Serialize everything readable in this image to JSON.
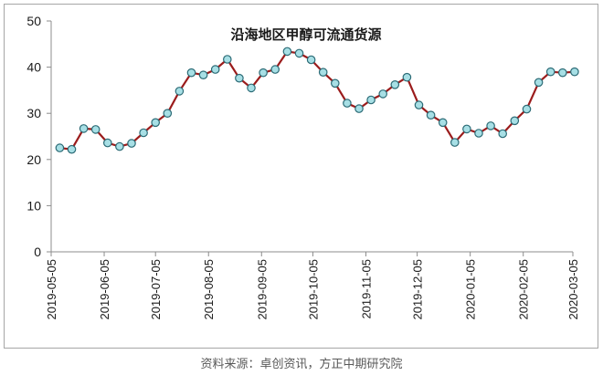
{
  "chart_data": {
    "type": "line",
    "title": "沿海地区甲醇可流通货源",
    "xlabel": "",
    "ylabel": "",
    "ylim": [
      0,
      50
    ],
    "yticks": [
      0,
      10,
      20,
      30,
      40,
      50
    ],
    "xticks": [
      "2019-05-05",
      "2019-06-05",
      "2019-07-05",
      "2019-08-05",
      "2019-09-05",
      "2019-10-05",
      "2019-11-05",
      "2019-12-05",
      "2020-01-05",
      "2020-02-05",
      "2020-03-05"
    ],
    "grid": false,
    "line_color": "#9b1c1c",
    "marker_fill": "#a7dfe5",
    "marker_edge": "#2c6b76",
    "series": [
      {
        "x": [
          "2019-05-10",
          "2019-05-17",
          "2019-05-24",
          "2019-05-31",
          "2019-06-07",
          "2019-06-14",
          "2019-06-21",
          "2019-06-28",
          "2019-07-05",
          "2019-07-12",
          "2019-07-19",
          "2019-07-26",
          "2019-08-02",
          "2019-08-09",
          "2019-08-16",
          "2019-08-23",
          "2019-08-30",
          "2019-09-06",
          "2019-09-13",
          "2019-09-20",
          "2019-09-27",
          "2019-10-04",
          "2019-10-11",
          "2019-10-18",
          "2019-10-25",
          "2019-11-01",
          "2019-11-08",
          "2019-11-15",
          "2019-11-22",
          "2019-11-29",
          "2019-12-06",
          "2019-12-13",
          "2019-12-20",
          "2019-12-27",
          "2020-01-03",
          "2020-01-10",
          "2020-01-17",
          "2020-01-24",
          "2020-01-31",
          "2020-02-07",
          "2020-02-14",
          "2020-02-21",
          "2020-02-28",
          "2020-03-06"
        ],
        "values": [
          22.5,
          22.2,
          26.7,
          26.5,
          23.6,
          22.8,
          23.5,
          25.8,
          28.0,
          30.0,
          34.8,
          38.8,
          38.3,
          39.5,
          41.7,
          37.6,
          35.5,
          38.8,
          39.5,
          43.4,
          43.0,
          41.6,
          38.9,
          36.5,
          32.2,
          31.0,
          32.9,
          34.2,
          36.2,
          37.8,
          31.8,
          29.6,
          28.0,
          23.7,
          26.6,
          25.7,
          27.3,
          25.6,
          28.4,
          30.9,
          36.7,
          39.0,
          38.8,
          39.0
        ]
      }
    ]
  },
  "source_text": "资料来源：卓创资讯，方正中期研究院"
}
